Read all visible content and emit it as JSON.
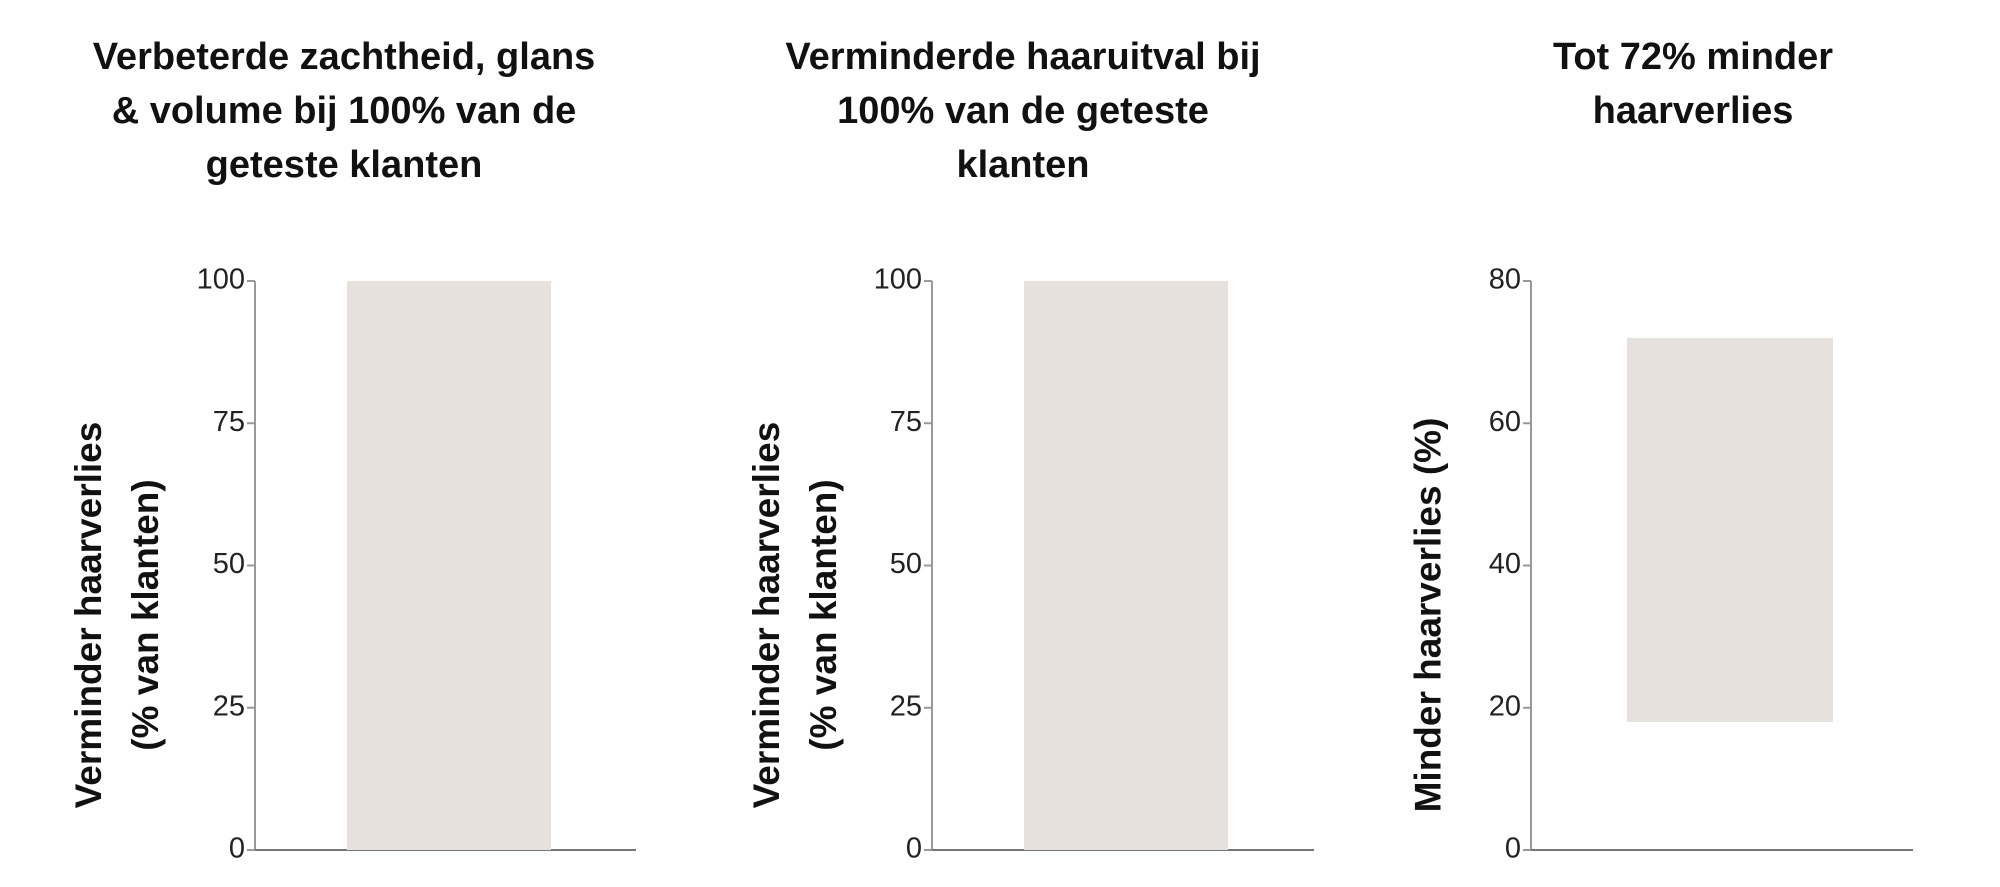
{
  "chart_data": [
    {
      "type": "bar",
      "title": [
        "Verbeterde zachtheid, glans",
        "& volume bij 100% van de",
        "geteste klanten"
      ],
      "ylabel": [
        "Verminder haarverlies",
        "(% van klanten)"
      ],
      "values": [
        100
      ],
      "color": "#e6e1dd",
      "ylim": [
        0,
        100
      ],
      "yticks": [
        0,
        25,
        50,
        75,
        100
      ]
    },
    {
      "type": "bar",
      "title": [
        "Verminderde haaruitval bij",
        "100% van de geteste",
        "klanten"
      ],
      "ylabel": [
        "Verminder haarverlies",
        "(% van klanten)"
      ],
      "values": [
        100
      ],
      "color": "#e6e1dd",
      "ylim": [
        0,
        100
      ],
      "yticks": [
        0,
        25,
        50,
        75,
        100
      ]
    },
    {
      "type": "range-bar",
      "title": [
        "Tot 72% minder",
        "haarverlies"
      ],
      "ylabel": [
        "Minder haarverlies (%)"
      ],
      "base": [
        18
      ],
      "values": [
        72
      ],
      "color": "#e6e1dd",
      "ylim": [
        0,
        80
      ],
      "yticks": [
        0,
        20,
        40,
        60,
        80
      ]
    }
  ]
}
